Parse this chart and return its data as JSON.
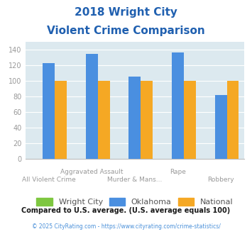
{
  "title_line1": "2018 Wright City",
  "title_line2": "Violent Crime Comparison",
  "categories": [
    "All Violent Crime",
    "Aggravated Assault",
    "Murder & Mans...",
    "Rape",
    "Robbery"
  ],
  "series": {
    "Wright City": [
      0,
      0,
      0,
      0,
      0
    ],
    "Oklahoma": [
      123,
      135,
      106,
      137,
      82
    ],
    "National": [
      100,
      100,
      100,
      100,
      100
    ]
  },
  "colors": {
    "Wright City": "#7ec740",
    "Oklahoma": "#4a8fe0",
    "National": "#f5a824"
  },
  "ylim": [
    0,
    150
  ],
  "yticks": [
    0,
    20,
    40,
    60,
    80,
    100,
    120,
    140
  ],
  "footnote1": "Compared to U.S. average. (U.S. average equals 100)",
  "footnote2": "© 2025 CityRating.com - https://www.cityrating.com/crime-statistics/",
  "plot_bg_color": "#dce9ef",
  "title_color": "#2060b0",
  "footnote1_color": "#1a1a1a",
  "footnote2_color": "#4a90d9",
  "tick_label_color": "#999999",
  "bar_width": 0.28
}
